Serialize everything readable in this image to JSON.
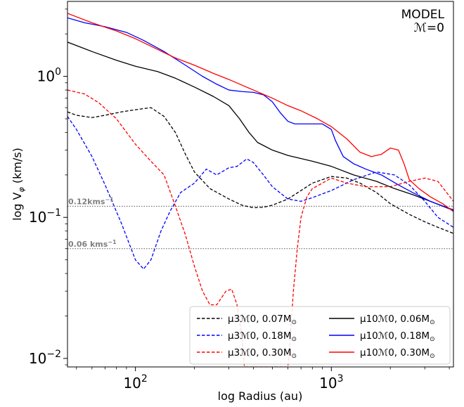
{
  "chart_data": {
    "type": "line",
    "title": "",
    "xlabel": "log Radius (au)",
    "ylabel": "log V",
    "ylabel_sub": "φ",
    "ylabel_unit": " (km/s)",
    "xscale": "log",
    "yscale": "log",
    "xlim": [
      45,
      4200
    ],
    "ylim": [
      0.0087,
      3.4
    ],
    "xticks": [
      {
        "value": 100,
        "base": "10",
        "exp": "2"
      },
      {
        "value": 1000,
        "base": "10",
        "exp": "3"
      }
    ],
    "yticks": [
      {
        "value": 1.0,
        "base": "10",
        "exp": "0"
      },
      {
        "value": 0.1,
        "base": "10",
        "exp": "−1"
      },
      {
        "value": 0.01,
        "base": "10",
        "exp": "−2"
      }
    ],
    "annotation": {
      "line1": "MODEL",
      "line2": "ℳ=0"
    },
    "reference_lines": [
      {
        "value": 0.12,
        "label": "0.12kms",
        "sup": "−1"
      },
      {
        "value": 0.06,
        "label": "0.06 kms",
        "sup": "−1"
      }
    ],
    "legend_position": "lower-right",
    "series": [
      {
        "name": "μ3ℳ0, 0.07M",
        "color": "#000000",
        "dash": true,
        "x": [
          45,
          50,
          60,
          70,
          85,
          100,
          120,
          140,
          160,
          180,
          200,
          240,
          300,
          350,
          400,
          450,
          500,
          600,
          700,
          800,
          1000,
          1200,
          1400,
          1700,
          2000,
          2500,
          3000,
          3500,
          4200
        ],
        "y": [
          0.56,
          0.53,
          0.51,
          0.53,
          0.56,
          0.58,
          0.6,
          0.52,
          0.4,
          0.28,
          0.21,
          0.16,
          0.135,
          0.122,
          0.117,
          0.118,
          0.122,
          0.135,
          0.155,
          0.175,
          0.195,
          0.19,
          0.175,
          0.15,
          0.125,
          0.105,
          0.093,
          0.085,
          0.077
        ]
      },
      {
        "name": "μ3ℳ0, 0.18M",
        "color": "#0000ff",
        "dash": true,
        "x": [
          45,
          50,
          60,
          70,
          85,
          100,
          110,
          120,
          135,
          150,
          170,
          200,
          230,
          260,
          300,
          330,
          370,
          400,
          450,
          500,
          600,
          700,
          800,
          1000,
          1300,
          1700,
          2100,
          2500,
          3000,
          3500,
          4200
        ],
        "y": [
          0.52,
          0.42,
          0.27,
          0.17,
          0.09,
          0.05,
          0.043,
          0.05,
          0.08,
          0.11,
          0.15,
          0.175,
          0.22,
          0.2,
          0.225,
          0.23,
          0.26,
          0.245,
          0.2,
          0.165,
          0.135,
          0.13,
          0.138,
          0.155,
          0.185,
          0.21,
          0.2,
          0.17,
          0.13,
          0.1,
          0.085
        ]
      },
      {
        "name": "μ3ℳ0, 0.30M",
        "color": "#ff0000",
        "dash": true,
        "x": [
          45,
          55,
          65,
          80,
          100,
          120,
          140,
          160,
          180,
          200,
          220,
          240,
          260,
          290,
          310,
          330,
          350,
          360,
          600,
          615,
          640,
          670,
          700,
          750,
          800,
          900,
          1000,
          1200,
          1500,
          2000,
          2500,
          3000,
          3500,
          4200
        ],
        "y": [
          0.8,
          0.75,
          0.65,
          0.5,
          0.33,
          0.25,
          0.2,
          0.12,
          0.075,
          0.045,
          0.03,
          0.024,
          0.024,
          0.03,
          0.031,
          0.024,
          0.014,
          0.0087,
          0.0087,
          0.013,
          0.03,
          0.06,
          0.1,
          0.14,
          0.16,
          0.175,
          0.19,
          0.175,
          0.165,
          0.165,
          0.18,
          0.19,
          0.18,
          0.13
        ]
      },
      {
        "name": "μ10ℳ0, 0.06M",
        "color": "#000000",
        "dash": false,
        "x": [
          45,
          60,
          80,
          100,
          130,
          160,
          200,
          250,
          300,
          340,
          380,
          420,
          500,
          600,
          800,
          1000,
          1300,
          1700,
          2100,
          2600,
          3200,
          4200
        ],
        "y": [
          1.75,
          1.5,
          1.3,
          1.18,
          1.08,
          0.97,
          0.84,
          0.72,
          0.62,
          0.5,
          0.4,
          0.34,
          0.3,
          0.275,
          0.25,
          0.23,
          0.2,
          0.18,
          0.16,
          0.145,
          0.13,
          0.112
        ]
      },
      {
        "name": "μ10ℳ0, 0.18M",
        "color": "#0000ff",
        "dash": false,
        "x": [
          45,
          55,
          70,
          90,
          110,
          140,
          180,
          220,
          260,
          300,
          350,
          400,
          450,
          500,
          550,
          600,
          650,
          700,
          800,
          900,
          1000,
          1050,
          1150,
          1300,
          1500,
          1800,
          2200,
          2600,
          3200,
          4200
        ],
        "y": [
          2.6,
          2.4,
          2.25,
          2.05,
          1.8,
          1.5,
          1.2,
          1.0,
          0.88,
          0.8,
          0.78,
          0.77,
          0.74,
          0.66,
          0.55,
          0.48,
          0.46,
          0.46,
          0.46,
          0.46,
          0.42,
          0.35,
          0.27,
          0.24,
          0.22,
          0.2,
          0.17,
          0.15,
          0.13,
          0.113
        ]
      },
      {
        "name": "μ10ℳ0, 0.30M",
        "color": "#ff0000",
        "dash": false,
        "x": [
          45,
          60,
          80,
          100,
          130,
          160,
          200,
          250,
          300,
          400,
          500,
          600,
          700,
          850,
          1000,
          1200,
          1400,
          1600,
          1800,
          2000,
          2200,
          2350,
          2500,
          2800,
          3200,
          3700,
          4200
        ],
        "y": [
          2.8,
          2.4,
          2.1,
          1.85,
          1.55,
          1.35,
          1.2,
          1.05,
          0.95,
          0.8,
          0.7,
          0.62,
          0.57,
          0.5,
          0.44,
          0.36,
          0.29,
          0.27,
          0.28,
          0.31,
          0.3,
          0.24,
          0.185,
          0.16,
          0.14,
          0.125,
          0.11
        ]
      }
    ],
    "legend_sub": "⊙"
  }
}
